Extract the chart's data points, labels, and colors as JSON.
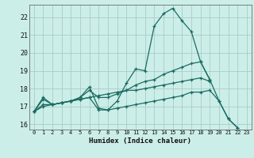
{
  "xlabel": "Humidex (Indice chaleur)",
  "background_color": "#cceee8",
  "grid_color": "#aaccca",
  "line_color": "#1a6b62",
  "xlim": [
    -0.5,
    23.5
  ],
  "ylim": [
    15.7,
    22.7
  ],
  "yticks": [
    16,
    17,
    18,
    19,
    20,
    21,
    22
  ],
  "xticks": [
    0,
    1,
    2,
    3,
    4,
    5,
    6,
    7,
    8,
    9,
    10,
    11,
    12,
    13,
    14,
    15,
    16,
    17,
    18,
    19,
    20,
    21,
    22,
    23
  ],
  "series": [
    [
      16.7,
      17.5,
      17.1,
      17.2,
      17.3,
      17.5,
      18.1,
      16.9,
      16.8,
      17.3,
      18.3,
      19.1,
      19.0,
      21.5,
      22.2,
      22.5,
      21.8,
      21.2,
      19.5,
      18.5,
      17.3,
      16.3,
      15.8,
      null
    ],
    [
      16.7,
      17.4,
      17.1,
      17.2,
      17.3,
      17.5,
      17.9,
      17.5,
      17.5,
      17.7,
      17.9,
      18.2,
      18.4,
      18.5,
      18.8,
      19.0,
      19.2,
      19.4,
      19.5,
      18.5,
      null,
      null,
      null,
      null
    ],
    [
      16.7,
      17.1,
      17.1,
      17.2,
      17.3,
      17.4,
      17.5,
      17.6,
      17.7,
      17.8,
      17.9,
      17.9,
      18.0,
      18.1,
      18.2,
      18.3,
      18.4,
      18.5,
      18.6,
      18.4,
      null,
      null,
      null,
      null
    ],
    [
      16.7,
      17.0,
      17.1,
      17.2,
      17.3,
      17.4,
      17.5,
      16.8,
      16.8,
      16.9,
      17.0,
      17.1,
      17.2,
      17.3,
      17.4,
      17.5,
      17.6,
      17.8,
      17.8,
      17.9,
      17.3,
      16.3,
      15.8,
      null
    ]
  ]
}
